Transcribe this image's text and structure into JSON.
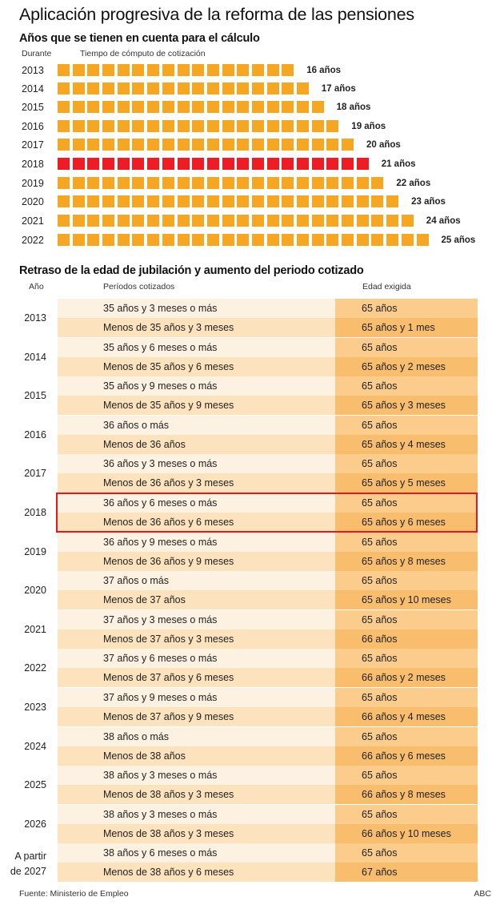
{
  "title": "Aplicación progresiva de la reforma de las pensiones",
  "section1": {
    "subtitle": "Años que se tienen en cuenta para el cálculo",
    "col_year": "Durante",
    "col_bar": "Tiempo de cómputo de cotización",
    "rows": [
      {
        "year": "2013",
        "years": 16,
        "label": "16  años",
        "highlight": false
      },
      {
        "year": "2014",
        "years": 17,
        "label": "17 años",
        "highlight": false
      },
      {
        "year": "2015",
        "years": 18,
        "label": "18 años",
        "highlight": false
      },
      {
        "year": "2016",
        "years": 19,
        "label": "19 años",
        "highlight": false
      },
      {
        "year": "2017",
        "years": 20,
        "label": "20 años",
        "highlight": false
      },
      {
        "year": "2018",
        "years": 21,
        "label": "21 años",
        "highlight": true
      },
      {
        "year": "2019",
        "years": 22,
        "label": "22 años",
        "highlight": false
      },
      {
        "year": "2020",
        "years": 23,
        "label": "23 años",
        "highlight": false
      },
      {
        "year": "2021",
        "years": 24,
        "label": "24 años",
        "highlight": false
      },
      {
        "year": "2022",
        "years": 25,
        "label": "25 años",
        "highlight": false
      }
    ]
  },
  "section2": {
    "subtitle": "Retraso de la edad de jubilación y aumento del periodo cotizado",
    "col_year": "Año",
    "col_period": "Períodos cotizados",
    "col_age": "Edad exigida",
    "groups": [
      {
        "year": "2013",
        "rows": [
          {
            "period": "35 años y 3 meses o más",
            "age": "65 años"
          },
          {
            "period": "Menos de 35 años y 3 meses",
            "age": "65 años y 1 mes"
          }
        ]
      },
      {
        "year": "2014",
        "rows": [
          {
            "period": "35 años y 6 meses o más",
            "age": "65 años"
          },
          {
            "period": "Menos de 35 años y 6 meses",
            "age": "65 años y 2 meses"
          }
        ]
      },
      {
        "year": "2015",
        "rows": [
          {
            "period": "35 años y 9 meses o más",
            "age": "65 años"
          },
          {
            "period": "Menos de 35 años y 9 meses",
            "age": "65 años y 3 meses"
          }
        ]
      },
      {
        "year": "2016",
        "rows": [
          {
            "period": "36 años o más",
            "age": "65 años"
          },
          {
            "period": "Menos de 36 años",
            "age": "65 años y 4 meses"
          }
        ]
      },
      {
        "year": "2017",
        "rows": [
          {
            "period": "36 años y 3 meses o más",
            "age": "65 años"
          },
          {
            "period": "Menos de 36 años y 3 meses",
            "age": "65 años y 5 meses"
          }
        ]
      },
      {
        "year": "2018",
        "highlight": true,
        "rows": [
          {
            "period": "36 años y 6 meses o más",
            "age": "65 años"
          },
          {
            "period": "Menos de 36 años y 6 meses",
            "age": "65 años y 6 meses"
          }
        ]
      },
      {
        "year": "2019",
        "rows": [
          {
            "period": "36 años y 9 meses o más",
            "age": "65 años"
          },
          {
            "period": "Menos de 36 años y 9 meses",
            "age": "65 años y 8 meses"
          }
        ]
      },
      {
        "year": "2020",
        "rows": [
          {
            "period": "37 años o más",
            "age": "65 años"
          },
          {
            "period": "Menos de 37 años",
            "age": "65 años y 10 meses"
          }
        ]
      },
      {
        "year": "2021",
        "rows": [
          {
            "period": "37 años y 3 meses o más",
            "age": "65 años"
          },
          {
            "period": "Menos de 37 años y 3 meses",
            "age": "66 años"
          }
        ]
      },
      {
        "year": "2022",
        "rows": [
          {
            "period": "37 años y 6 meses o más",
            "age": "65 años"
          },
          {
            "period": "Menos de 37 años y 6 meses",
            "age": "66 años y 2 meses"
          }
        ]
      },
      {
        "year": "2023",
        "rows": [
          {
            "period": "37 años y 9 meses o más",
            "age": "65 años"
          },
          {
            "period": "Menos de 37 años y 9 meses",
            "age": "66 años y 4 meses"
          }
        ]
      },
      {
        "year": "2024",
        "rows": [
          {
            "period": "38 años o más",
            "age": "65 años"
          },
          {
            "period": "Menos de 38 años",
            "age": "66 años y 6 meses"
          }
        ]
      },
      {
        "year": "2025",
        "rows": [
          {
            "period": "38 años y 3 meses o más",
            "age": "65 años"
          },
          {
            "period": "Menos de 38 años y 3 meses",
            "age": "66 años y 8 meses"
          }
        ]
      },
      {
        "year": "2026",
        "rows": [
          {
            "period": "38 años y 3 meses o más",
            "age": "65 años"
          },
          {
            "period": "Menos de 38 años y 3 meses",
            "age": "66 años y 10 meses"
          }
        ]
      },
      {
        "year": "A partir\nde  2027",
        "year_line1": "A partir",
        "year_line2": "de  2027",
        "rows": [
          {
            "period": "38 años y 6 meses o más",
            "age": "65 años"
          },
          {
            "period": "Menos de 38 años y 6 meses",
            "age": "67 años"
          }
        ]
      }
    ]
  },
  "footer": {
    "source": "Fuente: Ministerio de Empleo",
    "credit": "ABC"
  },
  "colors": {
    "bar": "#f5a623",
    "bar_highlight": "#ee1c25",
    "period_light": "#fdf1e1",
    "period_dark": "#fce2bd",
    "age_light": "#fbcc8c",
    "age_dark": "#f9bd6e",
    "highlight_border": "#e8171f"
  },
  "chart_data": [
    {
      "type": "bar",
      "title": "Años que se tienen en cuenta para el cálculo",
      "xlabel": "Tiempo de cómputo de cotización",
      "ylabel": "Durante",
      "orientation": "horizontal",
      "categories": [
        "2013",
        "2014",
        "2015",
        "2016",
        "2017",
        "2018",
        "2019",
        "2020",
        "2021",
        "2022"
      ],
      "values": [
        16,
        17,
        18,
        19,
        20,
        21,
        22,
        23,
        24,
        25
      ],
      "unit": "años",
      "highlighted_category": "2018",
      "grid": false
    },
    {
      "type": "table",
      "title": "Retraso de la edad de jubilación y aumento del periodo cotizado",
      "columns": [
        "Año",
        "Períodos cotizados",
        "Edad exigida"
      ],
      "highlighted_year": "2018"
    }
  ]
}
